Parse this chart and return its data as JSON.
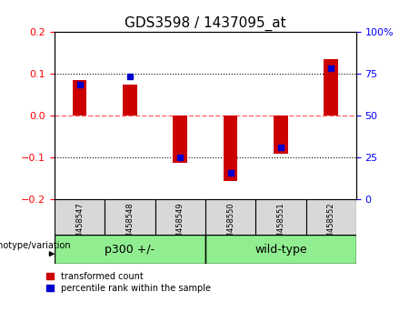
{
  "title": "GDS3598 / 1437095_at",
  "samples": [
    "GSM458547",
    "GSM458548",
    "GSM458549",
    "GSM458550",
    "GSM458551",
    "GSM458552"
  ],
  "red_values": [
    0.085,
    0.075,
    -0.113,
    -0.155,
    -0.09,
    0.135
  ],
  "blue_values": [
    0.075,
    0.095,
    -0.1,
    -0.135,
    -0.075,
    0.115
  ],
  "ylim": [
    -0.2,
    0.2
  ],
  "yticks_left": [
    -0.2,
    -0.1,
    0,
    0.1,
    0.2
  ],
  "yticks_right": [
    0,
    25,
    50,
    75,
    100
  ],
  "yticks_right_vals": [
    -0.2,
    -0.1,
    0.0,
    0.1,
    0.2
  ],
  "group1_label": "p300 +/-",
  "group2_label": "wild-type",
  "group1_indices": [
    0,
    1,
    2
  ],
  "group2_indices": [
    3,
    4,
    5
  ],
  "group_color": "#90EE90",
  "bar_color_red": "#CC0000",
  "bar_color_blue": "#0000CC",
  "legend_red_label": "transformed count",
  "legend_blue_label": "percentile rank within the sample",
  "bar_width": 0.28,
  "zero_line_color": "#FF6666",
  "background_color": "#d8d8d8"
}
